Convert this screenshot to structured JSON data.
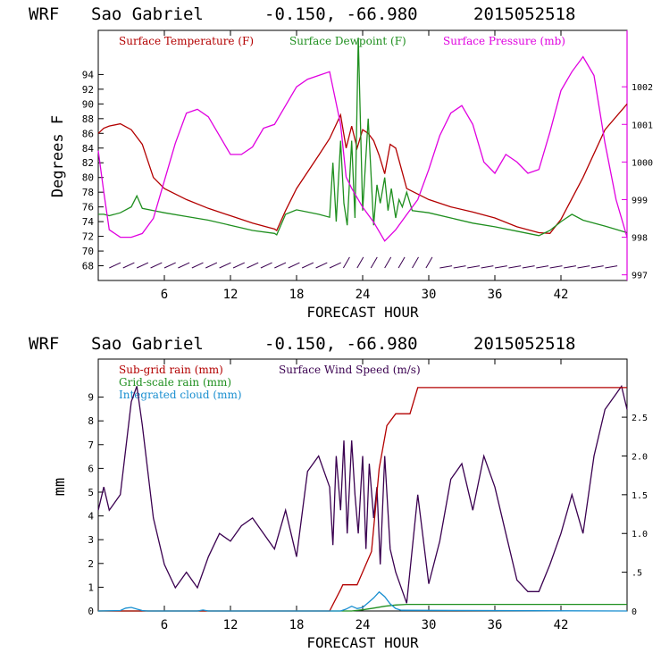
{
  "colors": {
    "temperature": "#b30000",
    "dewpoint": "#1f8f1f",
    "pressure": "#e000e0",
    "subgrid_rain": "#b30000",
    "gridscale_rain": "#1f8f1f",
    "cloud": "#1a8fd0",
    "wind": "#3a0050",
    "barbs": "#3a0050",
    "axis": "#000000"
  },
  "chart_data": [
    {
      "type": "line",
      "header": {
        "model": "WRF",
        "station": "Sao Gabriel",
        "coords": "-0.150, -66.980",
        "run": "2015052518"
      },
      "title": "WRF Sao Gabriel -0.150, -66.980 2015052518",
      "xlabel": "FORECAST HOUR",
      "ylabel": "Degrees F",
      "xlim": [
        0,
        48
      ],
      "xticks": [
        "6",
        "12",
        "18",
        "24",
        "30",
        "36",
        "42"
      ],
      "ylim": [
        66,
        100
      ],
      "yticks": [
        "68",
        "70",
        "72",
        "74",
        "76",
        "78",
        "80",
        "82",
        "84",
        "86",
        "88",
        "90",
        "92",
        "94"
      ],
      "y2lim": [
        996.85,
        1003.5
      ],
      "y2ticks": [
        "997",
        "998",
        "999",
        "1000",
        "1001",
        "1002"
      ],
      "legend": [
        "Surface Temperature (F)",
        "Surface Dewpoint (F)",
        "Surface Pressure (mb)"
      ],
      "legend_position": "top-left",
      "wind_barbs_row": true,
      "series": [
        {
          "name": "Surface Temperature (F)",
          "axis": "left",
          "x": [
            0,
            0.5,
            1,
            2,
            3,
            4,
            5,
            6,
            8,
            10,
            12,
            14,
            16,
            16.2,
            17,
            18,
            20,
            21,
            22,
            22.5,
            23,
            23.5,
            24,
            24.5,
            25,
            25.5,
            26,
            26.5,
            27,
            28,
            30,
            32,
            34,
            36,
            38,
            40,
            41,
            42,
            44,
            46,
            48
          ],
          "values": [
            86.0,
            86.7,
            87.0,
            87.3,
            86.5,
            84.5,
            80.0,
            78.5,
            77.0,
            75.8,
            74.8,
            73.8,
            73.0,
            72.8,
            75.5,
            78.5,
            83.0,
            85.3,
            88.5,
            84.0,
            87.0,
            84.0,
            86.5,
            86.0,
            85.0,
            83.0,
            80.5,
            84.5,
            84.0,
            78.5,
            77.0,
            76.0,
            75.3,
            74.5,
            73.3,
            72.5,
            72.4,
            74.3,
            80.0,
            86.5,
            90.0
          ]
        },
        {
          "name": "Surface Dewpoint (F)",
          "axis": "left",
          "x": [
            0,
            0.5,
            1,
            2,
            3,
            3.5,
            4,
            5,
            6,
            8,
            10,
            12,
            14,
            16,
            16.2,
            17,
            18,
            20,
            21,
            21.3,
            21.6,
            22,
            22.3,
            22.6,
            23,
            23.3,
            23.6,
            24,
            24.5,
            25,
            25.3,
            25.6,
            26,
            26.3,
            26.6,
            27,
            27.3,
            27.6,
            28,
            28.5,
            30,
            32,
            34,
            36,
            38,
            40,
            41,
            42,
            43,
            44,
            46,
            48
          ],
          "values": [
            75.0,
            75.0,
            74.8,
            75.2,
            76.0,
            77.5,
            75.8,
            75.5,
            75.2,
            74.7,
            74.2,
            73.5,
            72.8,
            72.4,
            72.2,
            75.0,
            75.6,
            75.0,
            74.6,
            82.0,
            74.0,
            85.0,
            76.5,
            73.5,
            85.0,
            74.5,
            99.0,
            75.5,
            88.0,
            73.5,
            79.0,
            76.5,
            80.0,
            75.5,
            78.5,
            74.5,
            77.0,
            76.0,
            78.0,
            75.5,
            75.2,
            74.5,
            73.8,
            73.3,
            72.7,
            72.1,
            72.8,
            74.0,
            75.0,
            74.2,
            73.4,
            72.5
          ]
        },
        {
          "name": "Surface Pressure (mb)",
          "axis": "right",
          "x": [
            0,
            0.5,
            1,
            2,
            3,
            4,
            5,
            6,
            7,
            8,
            9,
            10,
            11,
            12,
            13,
            14,
            15,
            16,
            17,
            18,
            19,
            20,
            21,
            22,
            22.5,
            23,
            24,
            25,
            26,
            27,
            28,
            29,
            30,
            31,
            32,
            33,
            34,
            35,
            36,
            37,
            38,
            39,
            40,
            41,
            42,
            43,
            44,
            45,
            46,
            47,
            48
          ],
          "values": [
            1000.3,
            999.2,
            998.2,
            998.0,
            998.0,
            998.1,
            998.5,
            999.5,
            1000.5,
            1001.3,
            1001.4,
            1001.2,
            1000.7,
            1000.2,
            1000.2,
            1000.4,
            1000.9,
            1001.0,
            1001.5,
            1002.0,
            1002.2,
            1002.3,
            1002.4,
            1001.0,
            999.6,
            999.3,
            998.8,
            998.4,
            997.9,
            998.2,
            998.6,
            999.0,
            999.8,
            1000.7,
            1001.3,
            1001.5,
            1001.0,
            1000.0,
            999.7,
            1000.2,
            1000.0,
            999.7,
            999.8,
            1000.8,
            1001.9,
            1002.4,
            1002.8,
            1002.3,
            1000.5,
            999.0,
            998.0
          ]
        }
      ]
    },
    {
      "type": "line",
      "header": {
        "model": "WRF",
        "station": "Sao Gabriel",
        "coords": "-0.150, -66.980",
        "run": "2015052518"
      },
      "title": "WRF Sao Gabriel -0.150, -66.980 2015052518",
      "xlabel": "FORECAST HOUR",
      "ylabel": "mm",
      "xlim": [
        0,
        48
      ],
      "xticks": [
        "6",
        "12",
        "18",
        "24",
        "30",
        "36",
        "42"
      ],
      "ylim": [
        0,
        10.6
      ],
      "yticks": [
        "0",
        "1",
        "2",
        "3",
        "4",
        "5",
        "6",
        "7",
        "8",
        "9"
      ],
      "y2lim": [
        0,
        3.25
      ],
      "y2ticks": [
        "0",
        ".5",
        "1.0",
        "1.5",
        "2.0",
        "2.5"
      ],
      "legend": [
        "Sub-grid rain (mm)",
        "Surface Wind Speed (m/s)",
        "Grid-scale rain (mm)",
        "Integrated cloud (mm)"
      ],
      "legend_position": "top-left",
      "series": [
        {
          "name": "Sub-grid rain (mm)",
          "axis": "left",
          "x": [
            0,
            21,
            22,
            22.2,
            23.5,
            24.8,
            25.5,
            26.2,
            27,
            28.3,
            29,
            48
          ],
          "values": [
            0,
            0,
            0.9,
            1.1,
            1.1,
            2.5,
            6.0,
            7.8,
            8.3,
            8.3,
            9.4,
            9.4
          ]
        },
        {
          "name": "Surface Wind Speed (m/s)",
          "axis": "right",
          "x": [
            0,
            0.5,
            1,
            2,
            3,
            3.5,
            4,
            5,
            6,
            7,
            8,
            9,
            10,
            11,
            12,
            13,
            14,
            15,
            16,
            17,
            18,
            19,
            20,
            21,
            21.3,
            21.6,
            22,
            22.3,
            22.6,
            23,
            23.3,
            23.6,
            24,
            24.3,
            24.6,
            25,
            25.3,
            25.6,
            26,
            26.5,
            27,
            28,
            29,
            30,
            31,
            32,
            33,
            34,
            35,
            36,
            37,
            38,
            39,
            40,
            41,
            42,
            43,
            44,
            45,
            46,
            47,
            47.5,
            48
          ],
          "values": [
            1.3,
            1.6,
            1.3,
            1.5,
            2.7,
            2.9,
            2.4,
            1.2,
            0.6,
            0.3,
            0.5,
            0.3,
            0.7,
            1.0,
            0.9,
            1.1,
            1.2,
            1.0,
            0.8,
            1.3,
            0.7,
            1.8,
            2.0,
            1.6,
            0.85,
            2.0,
            1.3,
            2.2,
            1.0,
            2.2,
            1.5,
            1.0,
            2.0,
            0.8,
            1.9,
            1.2,
            1.6,
            0.6,
            2.0,
            0.8,
            0.5,
            0.1,
            1.5,
            0.35,
            0.9,
            1.7,
            1.9,
            1.3,
            2.0,
            1.6,
            1.0,
            0.4,
            0.25,
            0.25,
            0.6,
            1.0,
            1.5,
            1.0,
            2.0,
            2.6,
            2.8,
            2.9,
            2.6
          ]
        },
        {
          "name": "Grid-scale rain (mm)",
          "axis": "left",
          "x": [
            0,
            23,
            24,
            25,
            26,
            27,
            28,
            48
          ],
          "values": [
            0,
            0,
            0.05,
            0.12,
            0.2,
            0.25,
            0.28,
            0.28
          ]
        },
        {
          "name": "Integrated cloud (mm)",
          "axis": "left",
          "x": [
            0,
            2,
            2.5,
            3,
            3.5,
            4,
            4.5,
            5,
            9,
            9.5,
            10,
            22,
            22.5,
            23,
            23.5,
            24,
            24.5,
            25,
            25.5,
            26,
            26.5,
            27,
            27.5,
            48
          ],
          "values": [
            0,
            0.02,
            0.12,
            0.15,
            0.08,
            0.02,
            0,
            0,
            0,
            0.04,
            0,
            0,
            0.08,
            0.2,
            0.1,
            0.15,
            0.35,
            0.55,
            0.8,
            0.6,
            0.3,
            0.1,
            0.03,
            0
          ]
        }
      ]
    }
  ]
}
